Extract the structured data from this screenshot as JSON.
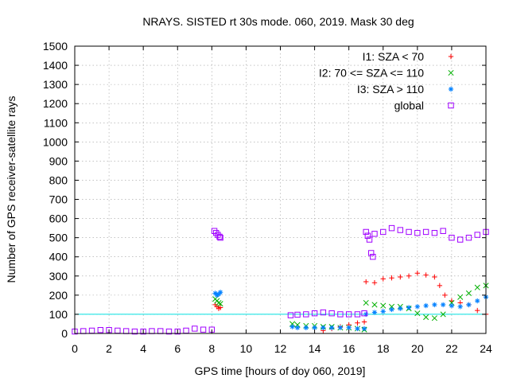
{
  "chart_data": {
    "type": "scatter",
    "title": "NRAYS. SISTED rt 30s mode. 060, 2019. Mask 30 deg",
    "xlabel": "GPS time [hours of doy 060, 2019]",
    "ylabel": "Number of GPS receiver-satellite rays",
    "xlim": [
      0,
      24
    ],
    "ylim": [
      0,
      1500
    ],
    "x_ticks": [
      0,
      2,
      4,
      6,
      8,
      10,
      12,
      14,
      16,
      18,
      20,
      22,
      24
    ],
    "y_ticks": [
      0,
      100,
      200,
      300,
      400,
      500,
      600,
      700,
      800,
      900,
      1000,
      1100,
      1200,
      1300,
      1400,
      1500
    ],
    "grid": true,
    "legend_position": "top-right",
    "reference_line": {
      "y": 100,
      "color": "#00e0e0"
    },
    "series": [
      {
        "name": "I1: SZA < 70",
        "marker": "+",
        "color": "#ff0000",
        "segments": [
          {
            "x": [
              8.2,
              8.3,
              8.4,
              8.5
            ],
            "y": [
              150,
              140,
              130,
              135
            ]
          },
          {
            "x": [
              14.5,
              15.0,
              15.5,
              16.0,
              16.5,
              16.9
            ],
            "y": [
              15,
              25,
              35,
              45,
              55,
              60
            ]
          },
          {
            "x": [
              17.0,
              17.5,
              18.0,
              18.5,
              19.0,
              19.5,
              20.0,
              20.5,
              21.0,
              21.3,
              21.6,
              22.0,
              22.5,
              23.0,
              23.5,
              24.0
            ],
            "y": [
              270,
              265,
              285,
              290,
              295,
              300,
              315,
              305,
              295,
              250,
              200,
              170,
              160,
              150,
              120,
              100
            ]
          }
        ]
      },
      {
        "name": "I2: 70 <= SZA <= 110",
        "marker": "x",
        "color": "#00b000",
        "segments": [
          {
            "x": [
              8.2,
              8.3,
              8.4,
              8.5
            ],
            "y": [
              180,
              170,
              160,
              155
            ]
          },
          {
            "x": [
              12.7,
              13.0,
              13.5,
              14.0,
              14.5,
              15.0,
              15.5,
              16.0,
              16.5,
              16.9
            ],
            "y": [
              50,
              45,
              40,
              40,
              35,
              35,
              30,
              30,
              25,
              20
            ]
          },
          {
            "x": [
              17.0,
              17.5,
              18.0,
              18.5,
              19.0,
              19.5,
              20.0,
              20.5,
              21.0,
              21.5,
              22.0,
              22.5,
              23.0,
              23.5,
              24.0
            ],
            "y": [
              160,
              150,
              145,
              140,
              140,
              130,
              105,
              85,
              80,
              100,
              160,
              190,
              210,
              240,
              250
            ]
          }
        ]
      },
      {
        "name": "I3: SZA > 110",
        "marker": "*",
        "color": "#0080ff",
        "segments": [
          {
            "x": [
              8.2,
              8.3,
              8.4,
              8.5
            ],
            "y": [
              210,
              200,
              205,
              215
            ]
          },
          {
            "x": [
              12.7,
              13.0,
              13.5,
              14.0,
              14.5,
              15.0,
              15.5,
              16.0,
              16.5,
              16.9
            ],
            "y": [
              35,
              30,
              30,
              30,
              30,
              30,
              30,
              30,
              25,
              25
            ]
          },
          {
            "x": [
              17.0,
              17.5,
              18.0,
              18.5,
              19.0,
              19.5,
              20.0,
              20.5,
              21.0,
              21.5,
              22.0,
              22.5,
              23.0,
              23.5,
              24.0
            ],
            "y": [
              100,
              110,
              115,
              125,
              130,
              135,
              140,
              145,
              150,
              150,
              145,
              140,
              150,
              170,
              190
            ]
          }
        ]
      },
      {
        "name": "global",
        "marker": "square",
        "color": "#a000ff",
        "segments": [
          {
            "x": [
              0,
              0.5,
              1,
              1.5,
              2,
              2.5,
              3,
              3.5,
              4,
              4.5,
              5,
              5.5,
              6,
              6.5,
              7,
              7.5,
              8
            ],
            "y": [
              10,
              12,
              15,
              18,
              18,
              15,
              12,
              10,
              10,
              12,
              12,
              10,
              10,
              15,
              25,
              20,
              20
            ]
          },
          {
            "x": [
              8.15,
              8.25,
              8.35,
              8.45,
              8.5
            ],
            "y": [
              535,
              525,
              515,
              505,
              500
            ]
          },
          {
            "x": [
              12.6,
              13.0,
              13.5,
              14.0,
              14.5,
              15.0,
              15.5,
              16.0,
              16.5,
              16.9
            ],
            "y": [
              95,
              98,
              100,
              105,
              110,
              105,
              100,
              100,
              100,
              105
            ]
          },
          {
            "x": [
              17.0,
              17.1,
              17.2,
              17.3,
              17.4
            ],
            "y": [
              530,
              510,
              490,
              420,
              400
            ]
          },
          {
            "x": [
              17.5,
              18.0,
              18.5,
              19.0,
              19.5,
              20.0,
              20.5,
              21.0,
              21.5,
              22.0,
              22.5,
              23.0,
              23.5,
              24.0
            ],
            "y": [
              520,
              530,
              550,
              540,
              530,
              525,
              530,
              525,
              535,
              500,
              490,
              500,
              515,
              530
            ]
          }
        ]
      }
    ]
  }
}
